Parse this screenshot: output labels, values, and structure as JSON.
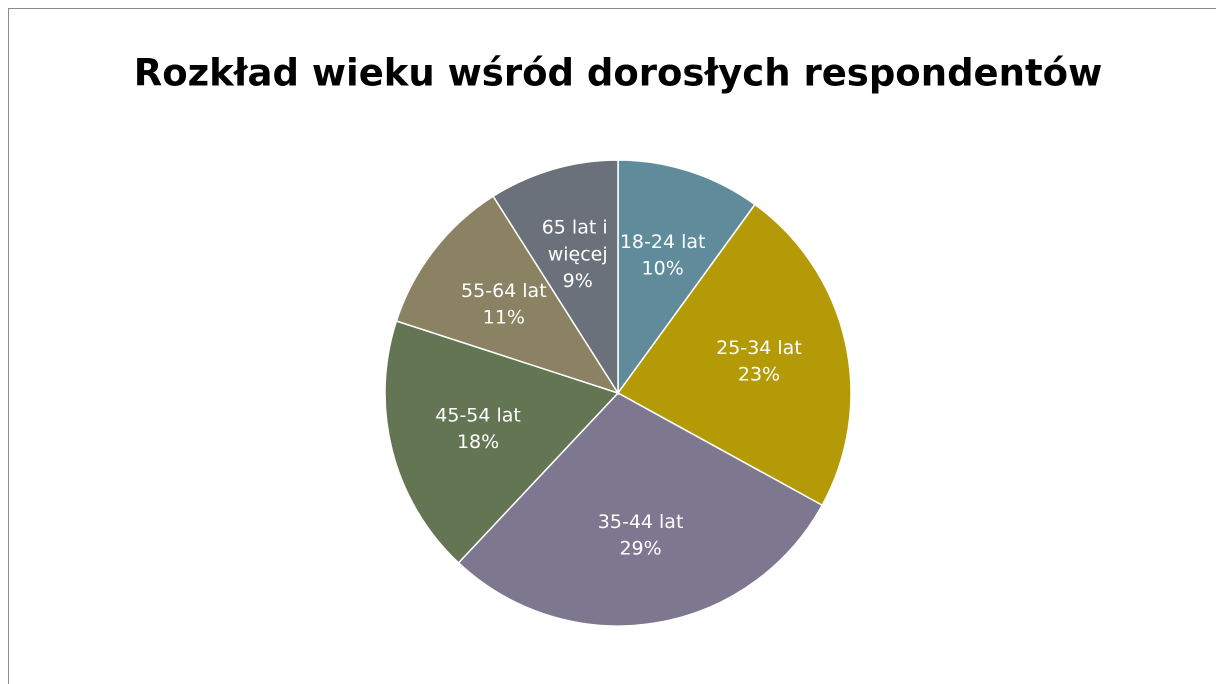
{
  "chart_data": {
    "type": "pie",
    "title": "Rozkład wieku wśród dorosłych respondentów",
    "categories": [
      "18-24 lat",
      "25-34 lat",
      "35-44 lat",
      "45-54 lat",
      "55-64 lat",
      "65 lat i więcej"
    ],
    "values": [
      10,
      23,
      29,
      18,
      11,
      9
    ],
    "value_labels": [
      "10%",
      "23%",
      "29%",
      "18%",
      "11%",
      "9%"
    ],
    "colors": [
      "#5f8b9b",
      "#b59a07",
      "#7d788f",
      "#647553",
      "#8b8163",
      "#6b717b"
    ]
  }
}
